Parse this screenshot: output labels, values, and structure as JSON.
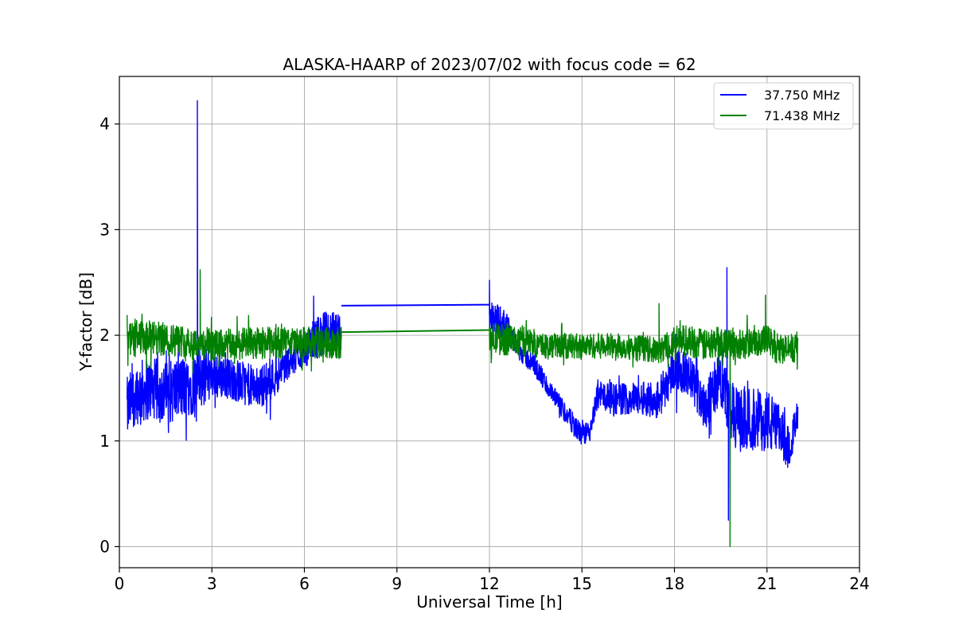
{
  "chart_data": {
    "type": "line",
    "title": "ALASKA-HAARP of 2023/07/02 with focus code = 62",
    "xlabel": "Universal Time [h]",
    "ylabel": "Y-factor [dB]",
    "xlim": [
      0,
      24
    ],
    "ylim": [
      -0.2,
      4.45
    ],
    "xticks": [
      0,
      3,
      6,
      9,
      12,
      15,
      18,
      21,
      24
    ],
    "yticks": [
      0,
      1,
      2,
      3,
      4
    ],
    "grid": true,
    "legend_position": "top-right",
    "series": [
      {
        "name": "37.750 MHz",
        "color": "#0000ff",
        "segments": [
          {
            "x": [
              0.25,
              0.5,
              1.0,
              1.5,
              2.0,
              2.4,
              2.5,
              2.55,
              2.6,
              3.0,
              3.5,
              4.0,
              4.5,
              5.0,
              5.5,
              6.0,
              6.3,
              6.5,
              6.8,
              7.0,
              7.2
            ],
            "center": [
              1.3,
              1.45,
              1.5,
              1.45,
              1.5,
              1.55,
              1.55,
              1.6,
              1.6,
              1.65,
              1.6,
              1.55,
              1.5,
              1.6,
              1.75,
              1.85,
              1.95,
              2.0,
              2.05,
              2.0,
              2.0
            ],
            "spread": [
              0.3,
              0.3,
              0.3,
              0.3,
              0.3,
              0.3,
              0.3,
              0.3,
              0.3,
              0.25,
              0.2,
              0.2,
              0.2,
              0.2,
              0.15,
              0.15,
              0.2,
              0.2,
              0.2,
              0.2,
              0.2
            ]
          },
          {
            "x": [
              7.2,
              12.0
            ],
            "center": [
              2.28,
              2.29
            ],
            "spread": [
              0,
              0
            ]
          },
          {
            "x": [
              12.0,
              12.5,
              13.0,
              13.5,
              14.0,
              14.5,
              15.0,
              15.3,
              15.5,
              16.0,
              16.5,
              17.0,
              17.5,
              18.0,
              18.5,
              19.0,
              19.5,
              19.8,
              20.0,
              20.5,
              21.0,
              21.5,
              21.7,
              22.0
            ],
            "center": [
              2.2,
              2.1,
              1.85,
              1.7,
              1.45,
              1.25,
              1.05,
              1.1,
              1.45,
              1.4,
              1.4,
              1.4,
              1.4,
              1.7,
              1.6,
              1.35,
              1.6,
              1.3,
              1.2,
              1.2,
              1.2,
              1.05,
              0.95,
              1.2
            ],
            "spread": [
              0.15,
              0.15,
              0.1,
              0.1,
              0.1,
              0.1,
              0.1,
              0.1,
              0.15,
              0.15,
              0.15,
              0.15,
              0.2,
              0.2,
              0.2,
              0.25,
              0.25,
              0.3,
              0.3,
              0.3,
              0.3,
              0.25,
              0.2,
              0.15
            ]
          }
        ],
        "spikes": [
          {
            "x": 2.53,
            "y": 4.22
          },
          {
            "x": 6.3,
            "y": 2.37
          },
          {
            "x": 12.0,
            "y": 2.52
          },
          {
            "x": 19.7,
            "y": 2.64
          },
          {
            "x": 19.75,
            "y": 0.25
          }
        ]
      },
      {
        "name": "71.438 MHz",
        "color": "#008000",
        "segments": [
          {
            "x": [
              0.25,
              1.0,
              2.0,
              3.0,
              4.0,
              5.0,
              6.0,
              7.2
            ],
            "center": [
              1.95,
              1.97,
              1.95,
              1.9,
              1.92,
              1.93,
              1.93,
              1.93
            ],
            "spread": [
              0.17,
              0.17,
              0.15,
              0.15,
              0.15,
              0.15,
              0.15,
              0.15
            ]
          },
          {
            "x": [
              7.2,
              12.0
            ],
            "center": [
              2.03,
              2.05
            ],
            "spread": [
              0,
              0
            ]
          },
          {
            "x": [
              12.0,
              13.0,
              14.0,
              15.0,
              16.0,
              17.0,
              17.5,
              18.0,
              18.5,
              19.0,
              19.5,
              20.0,
              20.5,
              21.0,
              21.5,
              22.0
            ],
            "center": [
              1.97,
              1.95,
              1.9,
              1.9,
              1.9,
              1.88,
              1.85,
              1.95,
              1.95,
              1.9,
              1.95,
              1.9,
              1.95,
              1.95,
              1.85,
              1.9
            ],
            "spread": [
              0.15,
              0.15,
              0.12,
              0.12,
              0.12,
              0.12,
              0.12,
              0.15,
              0.15,
              0.15,
              0.15,
              0.15,
              0.15,
              0.15,
              0.15,
              0.15
            ]
          }
        ],
        "spikes": [
          {
            "x": 2.62,
            "y": 2.62
          },
          {
            "x": 17.5,
            "y": 2.3
          },
          {
            "x": 19.8,
            "y": 0.0
          },
          {
            "x": 20.95,
            "y": 2.38
          }
        ]
      }
    ]
  }
}
